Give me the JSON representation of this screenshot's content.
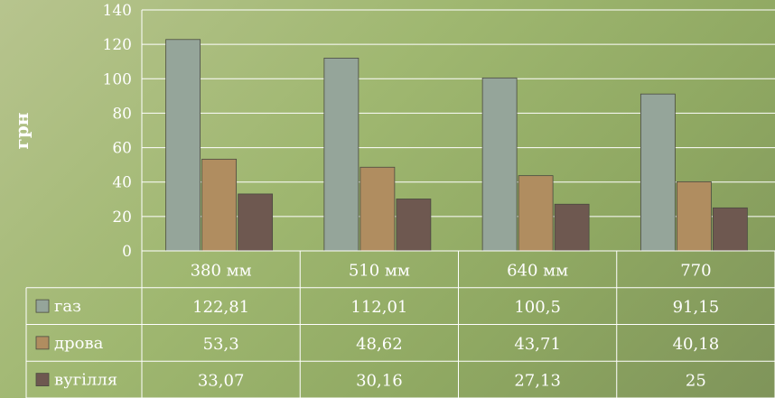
{
  "chart_data": {
    "type": "bar",
    "ylabel": "грн",
    "ylim": [
      0,
      140
    ],
    "yticks": [
      0,
      20,
      40,
      60,
      80,
      100,
      120,
      140
    ],
    "categories": [
      "380 мм",
      "510 мм",
      "640 мм",
      "770"
    ],
    "series": [
      {
        "name": "газ",
        "color": "#95a59a",
        "values": [
          "122,81",
          "112,01",
          "100,5",
          "91,15"
        ]
      },
      {
        "name": "дрова",
        "color": "#b08d60",
        "values": [
          "53,3",
          "48,62",
          "43,71",
          "40,18"
        ]
      },
      {
        "name": "вугілля",
        "color": "#6e5850",
        "values": [
          "33,07",
          "30,16",
          "27,13",
          "25"
        ]
      }
    ],
    "grid": true,
    "data_table": true
  }
}
